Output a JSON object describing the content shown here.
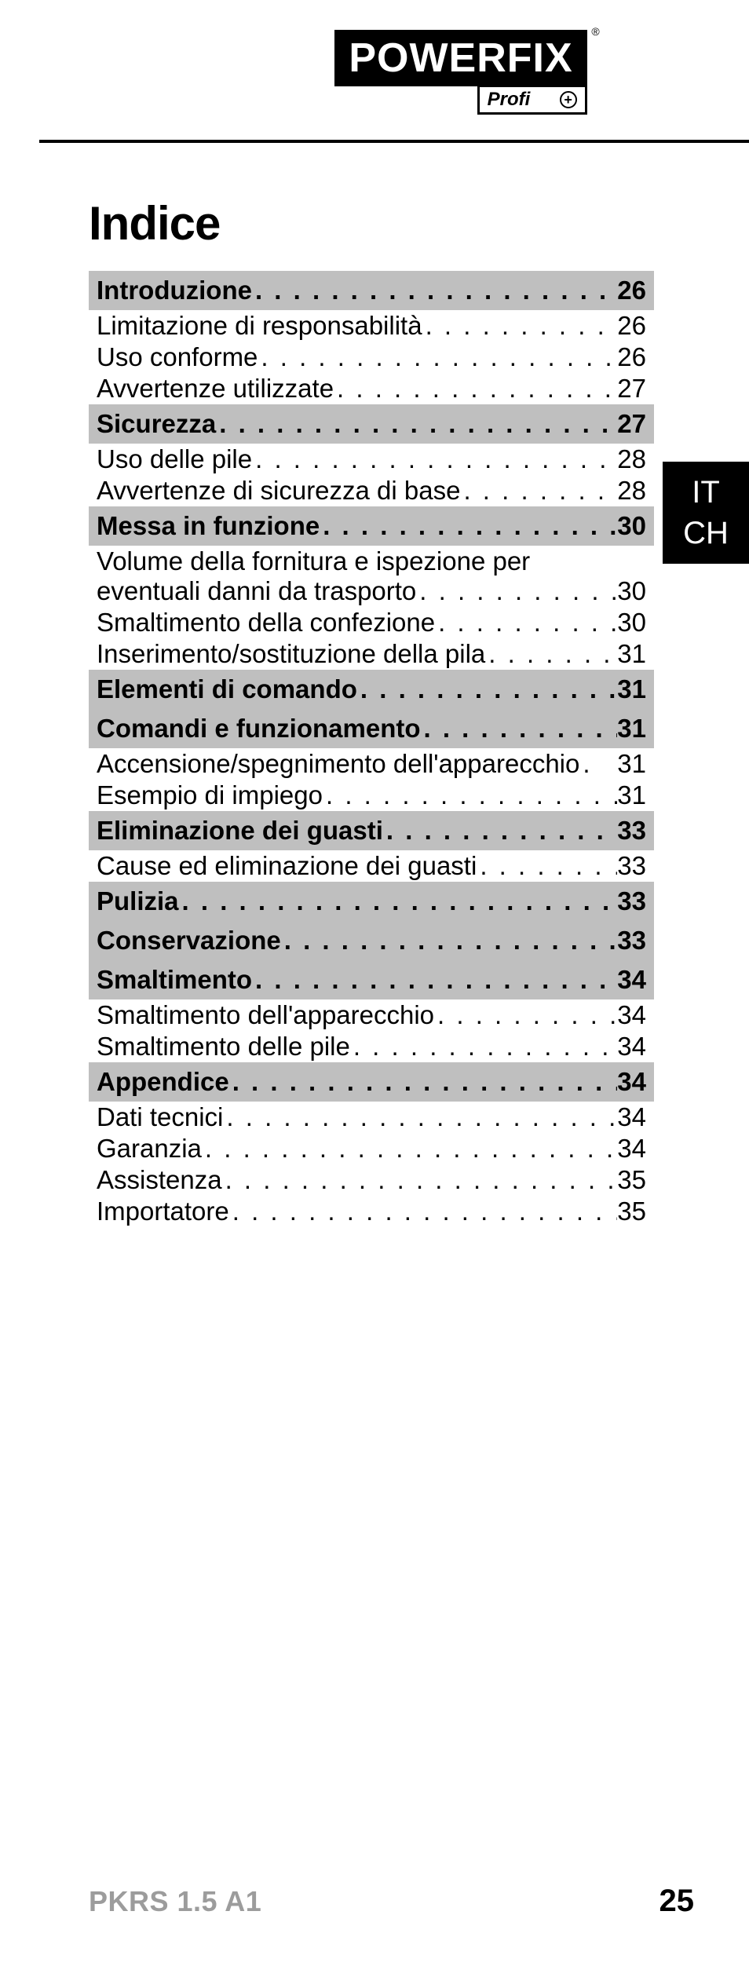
{
  "logo": {
    "main": "POWERFIX",
    "reg": "®",
    "sub": "Profi",
    "sub_icon": "+"
  },
  "lang_tab": [
    "IT",
    "CH"
  ],
  "title": "Indice",
  "sections": [
    {
      "head": {
        "label": "Introduzione",
        "page": "26"
      },
      "items": [
        {
          "label": "Limitazione di responsabilità",
          "page": "26"
        },
        {
          "label": "Uso conforme",
          "page": "26"
        },
        {
          "label": "Avvertenze utilizzate",
          "page": "27"
        }
      ]
    },
    {
      "head": {
        "label": "Sicurezza",
        "page": "27"
      },
      "items": [
        {
          "label": "Uso delle pile",
          "page": "28"
        },
        {
          "label": "Avvertenze di sicurezza di base",
          "page": "28"
        }
      ]
    },
    {
      "head": {
        "label": "Messa in funzione",
        "page": "30"
      },
      "items": [
        {
          "label": "Volume della fornitura e ispezione per",
          "label2": "eventuali danni da trasporto",
          "page": "30",
          "wrap": true
        },
        {
          "label": "Smaltimento della confezione",
          "page": "30"
        },
        {
          "label": "Inserimento/sostituzione della pila",
          "page": "31"
        }
      ]
    },
    {
      "head": {
        "label": "Elementi di comando",
        "page": "31"
      },
      "items": []
    },
    {
      "head": {
        "label": "Comandi e funzionamento",
        "page": "31"
      },
      "items": [
        {
          "label": "Accensione/spegnimento dell'apparecchio",
          "page": "31",
          "tight": true
        },
        {
          "label": "Esempio di impiego",
          "page": "31"
        }
      ]
    },
    {
      "head": {
        "label": "Eliminazione dei guasti",
        "page": "33"
      },
      "items": [
        {
          "label": "Cause ed eliminazione dei guasti",
          "page": "33"
        }
      ]
    },
    {
      "head": {
        "label": "Pulizia",
        "page": "33"
      },
      "items": []
    },
    {
      "head": {
        "label": "Conservazione",
        "page": "33"
      },
      "items": []
    },
    {
      "head": {
        "label": "Smaltimento",
        "page": "34"
      },
      "items": [
        {
          "label": "Smaltimento dell'apparecchio",
          "page": "34"
        },
        {
          "label": "Smaltimento delle pile",
          "page": "34"
        }
      ]
    },
    {
      "head": {
        "label": "Appendice",
        "page": "34"
      },
      "items": [
        {
          "label": "Dati tecnici",
          "page": "34"
        },
        {
          "label": "Garanzia",
          "page": "34"
        },
        {
          "label": "Assistenza",
          "page": "35"
        },
        {
          "label": "Importatore",
          "page": "35"
        }
      ]
    }
  ],
  "footer": {
    "model": "PKRS 1.5 A1",
    "page": "25"
  },
  "colors": {
    "section_bg": "#bfbfbf",
    "text": "#000000",
    "footer_model": "#9c9c9c"
  }
}
